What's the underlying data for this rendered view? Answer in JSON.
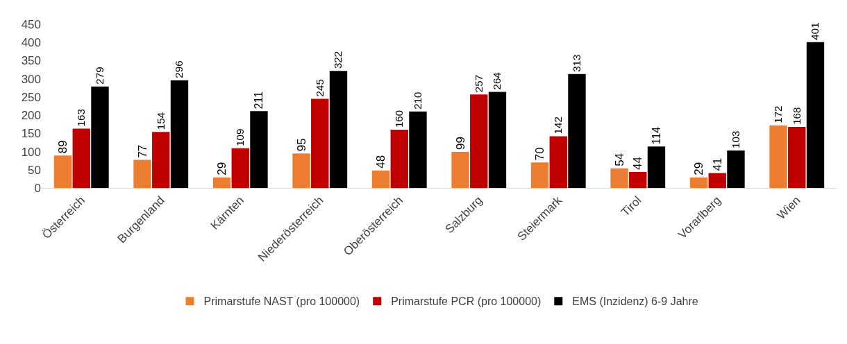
{
  "chart_data": {
    "type": "bar",
    "categories": [
      "Österreich",
      "Burgenland",
      "Kärnten",
      "Niederösterreich",
      "Oberösterreich",
      "Salzburg",
      "Steiermark",
      "Tirol",
      "Vorarlberg",
      "Wien"
    ],
    "series": [
      {
        "name": "Primarstufe NAST (pro 100000)",
        "color": "#ed7d31",
        "values": [
          89,
          77,
          29,
          95,
          48,
          99,
          70,
          54,
          29,
          172
        ]
      },
      {
        "name": "Primarstufe PCR (pro 100000)",
        "color": "#c00000",
        "values": [
          163,
          154,
          109,
          245,
          160,
          257,
          142,
          44,
          41,
          168
        ]
      },
      {
        "name": "EMS (Inzidenz) 6-9 Jahre",
        "color": "#000000",
        "values": [
          279,
          296,
          211,
          322,
          210,
          264,
          313,
          114,
          103,
          401
        ]
      }
    ],
    "ylim": [
      0,
      450
    ],
    "yticks": [
      0,
      50,
      100,
      150,
      200,
      250,
      300,
      350,
      400,
      450
    ],
    "data_labels": true,
    "grid": false,
    "legend": "bottom"
  }
}
